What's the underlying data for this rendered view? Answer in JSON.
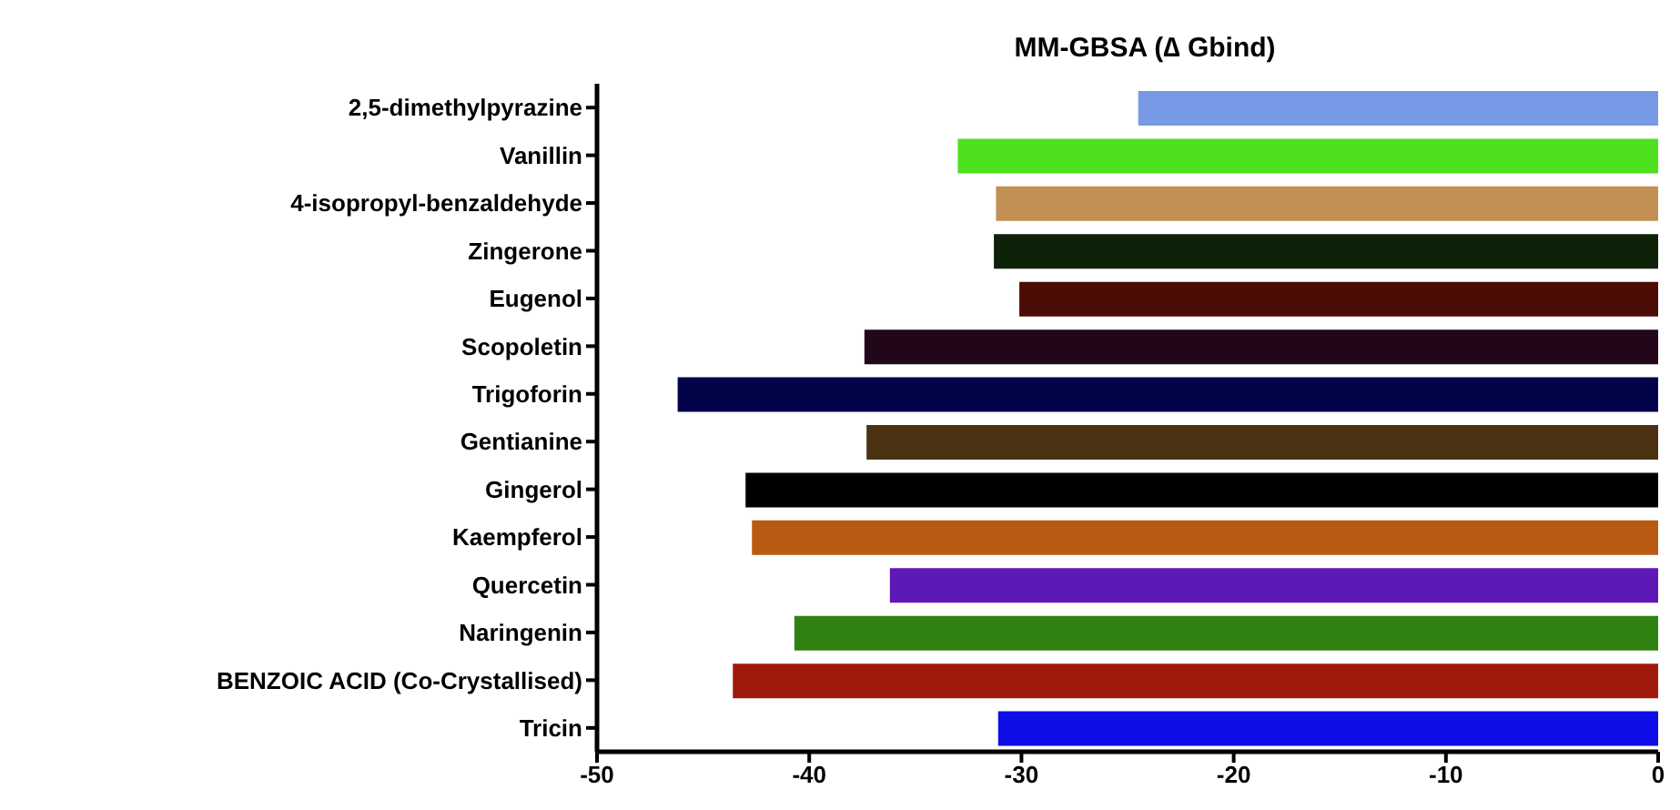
{
  "chart_data": {
    "type": "bar",
    "orientation": "horizontal",
    "title": "MM-GBSA (∆ Gbind)",
    "categories": [
      "2,5-dimethylpyrazine",
      "Vanillin",
      "4-isopropyl-benzaldehyde",
      "Zingerone",
      "Eugenol",
      "Scopoletin",
      "Trigoforin",
      "Gentianine",
      "Gingerol",
      "Kaempferol",
      "Quercetin",
      "Naringenin",
      "BENZOIC ACID (Co-Crystallised)",
      "Tricin"
    ],
    "values": [
      -24.5,
      -33.0,
      -31.2,
      -31.3,
      -30.1,
      -37.4,
      -46.2,
      -37.3,
      -43.0,
      -42.7,
      -36.2,
      -40.7,
      -43.6,
      -31.1
    ],
    "colors": [
      "#7799e6",
      "#4de01e",
      "#c29052",
      "#0d2208",
      "#4a0c05",
      "#22061a",
      "#03034a",
      "#4a3212",
      "#000000",
      "#b85a12",
      "#5e18b5",
      "#2f8212",
      "#a1190b",
      "#0d0fe6"
    ],
    "xlim": [
      -50,
      0
    ],
    "xticks": [
      -50,
      -40,
      -30,
      -20,
      -10,
      0
    ],
    "grid": false,
    "legend": false
  }
}
